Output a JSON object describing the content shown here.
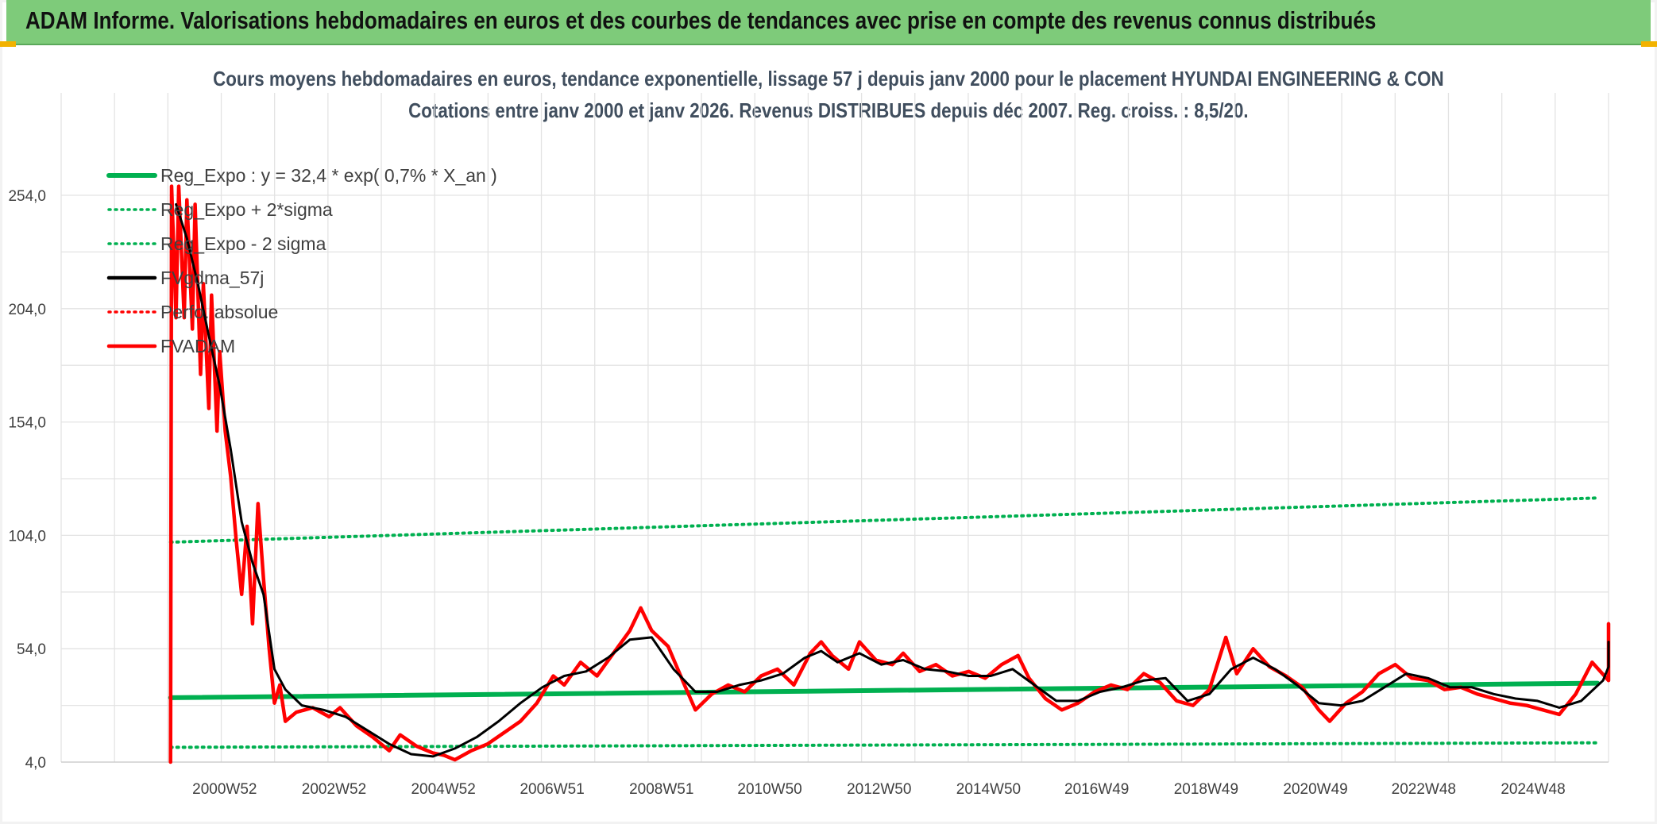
{
  "header": {
    "title": "ADAM Informe. Valorisations hebdomadaires en euros et des courbes de tendances avec prise en compte des revenus connus distribués"
  },
  "chart_data": {
    "type": "line",
    "title": "Cours moyens hebdomadaires en euros, tendance exponentielle, lissage 57 j depuis janv 2000 pour le placement HYUNDAI ENGINEERING & CON",
    "subtitle": "Cotations entre janv 2000 et janv 2026. Revenus DISTRIBUES depuis déc 2007. Reg. croiss. : 8,5/20.",
    "xlabel": "",
    "ylabel": "",
    "ylim": [
      4,
      254
    ],
    "yticks": [
      "254,0",
      "204,0",
      "154,0",
      "104,0",
      "54,0",
      "4,0"
    ],
    "ytick_values": [
      254,
      204,
      154,
      104,
      54,
      4
    ],
    "xlim": [
      1998.0,
      2026.3
    ],
    "xticks": [
      "2000W52",
      "2002W52",
      "2004W52",
      "2006W51",
      "2008W51",
      "2010W50",
      "2012W50",
      "2014W50",
      "2016W49",
      "2018W49",
      "2020W49",
      "2022W48",
      "2024W48"
    ],
    "xtick_values": [
      2000.99,
      2002.99,
      2004.99,
      2006.98,
      2008.98,
      2010.96,
      2012.96,
      2014.96,
      2016.94,
      2018.94,
      2020.94,
      2022.92,
      2024.92
    ],
    "grid": true,
    "legend_position": "top-left",
    "series": [
      {
        "name": "Reg_Expo : y = 32,4 * exp( 0,7% *  X_an )",
        "color": "#00b050",
        "style": "solid",
        "points": [
          [
            2000.0,
            32.4
          ],
          [
            2026.1,
            38.8
          ]
        ]
      },
      {
        "name": "Reg_Expo + 2*sigma",
        "color": "#00b050",
        "style": "dotted",
        "points": [
          [
            2000.0,
            101.0
          ],
          [
            2026.1,
            120.5
          ]
        ]
      },
      {
        "name": "Reg_Expo - 2 sigma",
        "color": "#00b050",
        "style": "dotted",
        "points": [
          [
            2000.0,
            10.5
          ],
          [
            2026.1,
            12.5
          ]
        ]
      },
      {
        "name": "FVgdma_57j",
        "color": "#000000",
        "style": "solid",
        "points": [
          [
            2000.1,
            250
          ],
          [
            2000.3,
            235
          ],
          [
            2000.5,
            215
          ],
          [
            2000.7,
            192
          ],
          [
            2000.9,
            170
          ],
          [
            2001.1,
            142
          ],
          [
            2001.3,
            110
          ],
          [
            2001.5,
            92
          ],
          [
            2001.7,
            78
          ],
          [
            2001.9,
            45
          ],
          [
            2002.1,
            36
          ],
          [
            2002.4,
            29
          ],
          [
            2002.8,
            27
          ],
          [
            2003.2,
            24
          ],
          [
            2003.6,
            18
          ],
          [
            2004.0,
            12
          ],
          [
            2004.4,
            7.5
          ],
          [
            2004.8,
            6.5
          ],
          [
            2005.2,
            10
          ],
          [
            2005.6,
            15
          ],
          [
            2006.0,
            22
          ],
          [
            2006.4,
            30
          ],
          [
            2006.8,
            37
          ],
          [
            2007.2,
            42
          ],
          [
            2007.6,
            44
          ],
          [
            2008.0,
            50
          ],
          [
            2008.4,
            58
          ],
          [
            2008.8,
            59
          ],
          [
            2009.2,
            45
          ],
          [
            2009.6,
            35
          ],
          [
            2010.0,
            35
          ],
          [
            2010.4,
            38
          ],
          [
            2010.8,
            40
          ],
          [
            2011.2,
            43
          ],
          [
            2011.6,
            50
          ],
          [
            2011.9,
            53
          ],
          [
            2012.2,
            48
          ],
          [
            2012.6,
            52
          ],
          [
            2013.0,
            47
          ],
          [
            2013.4,
            49
          ],
          [
            2013.8,
            45
          ],
          [
            2014.2,
            44
          ],
          [
            2014.6,
            42
          ],
          [
            2015.0,
            42
          ],
          [
            2015.4,
            45
          ],
          [
            2015.8,
            38
          ],
          [
            2016.2,
            31
          ],
          [
            2016.6,
            31
          ],
          [
            2017.0,
            35
          ],
          [
            2017.4,
            37
          ],
          [
            2017.8,
            40
          ],
          [
            2018.2,
            41
          ],
          [
            2018.6,
            31
          ],
          [
            2019.0,
            34
          ],
          [
            2019.4,
            45
          ],
          [
            2019.8,
            50
          ],
          [
            2020.2,
            45
          ],
          [
            2020.6,
            38
          ],
          [
            2021.0,
            30
          ],
          [
            2021.4,
            29
          ],
          [
            2021.8,
            31
          ],
          [
            2022.2,
            37
          ],
          [
            2022.6,
            43
          ],
          [
            2023.0,
            41
          ],
          [
            2023.4,
            37
          ],
          [
            2023.8,
            37
          ],
          [
            2024.2,
            34
          ],
          [
            2024.6,
            32
          ],
          [
            2025.0,
            31
          ],
          [
            2025.4,
            28
          ],
          [
            2025.8,
            31
          ],
          [
            2026.2,
            40
          ],
          [
            2026.6,
            46
          ],
          [
            2026.9,
            48
          ],
          [
            2027.3,
            52
          ],
          [
            2027.6,
            57
          ]
        ]
      },
      {
        "name": "Perfo. absolue",
        "color": "#ff0000",
        "style": "dotted",
        "points": []
      },
      {
        "name": "FVADAM",
        "color": "#ff0000",
        "style": "solid",
        "points": [
          [
            2000.0,
            4
          ],
          [
            2000.02,
            258
          ],
          [
            2000.1,
            200
          ],
          [
            2000.15,
            258
          ],
          [
            2000.25,
            200
          ],
          [
            2000.3,
            252
          ],
          [
            2000.4,
            195
          ],
          [
            2000.45,
            250
          ],
          [
            2000.55,
            175
          ],
          [
            2000.6,
            215
          ],
          [
            2000.7,
            160
          ],
          [
            2000.75,
            210
          ],
          [
            2000.85,
            150
          ],
          [
            2000.9,
            185
          ],
          [
            2001.0,
            150
          ],
          [
            2001.1,
            130
          ],
          [
            2001.2,
            102
          ],
          [
            2001.3,
            78
          ],
          [
            2001.4,
            108
          ],
          [
            2001.5,
            65
          ],
          [
            2001.6,
            118
          ],
          [
            2001.7,
            85
          ],
          [
            2001.8,
            55
          ],
          [
            2001.9,
            30
          ],
          [
            2002.0,
            38
          ],
          [
            2002.1,
            22
          ],
          [
            2002.3,
            26
          ],
          [
            2002.6,
            28
          ],
          [
            2002.9,
            24
          ],
          [
            2003.1,
            28
          ],
          [
            2003.4,
            20
          ],
          [
            2003.7,
            15
          ],
          [
            2004.0,
            9
          ],
          [
            2004.2,
            16
          ],
          [
            2004.5,
            11
          ],
          [
            2004.8,
            8
          ],
          [
            2005.0,
            7
          ],
          [
            2005.2,
            5
          ],
          [
            2005.5,
            9
          ],
          [
            2005.8,
            12
          ],
          [
            2006.1,
            17
          ],
          [
            2006.4,
            22
          ],
          [
            2006.7,
            30
          ],
          [
            2007.0,
            42
          ],
          [
            2007.2,
            38
          ],
          [
            2007.5,
            48
          ],
          [
            2007.8,
            42
          ],
          [
            2008.1,
            52
          ],
          [
            2008.4,
            62
          ],
          [
            2008.6,
            72
          ],
          [
            2008.8,
            62
          ],
          [
            2009.1,
            55
          ],
          [
            2009.4,
            38
          ],
          [
            2009.6,
            27
          ],
          [
            2009.9,
            34
          ],
          [
            2010.2,
            38
          ],
          [
            2010.5,
            35
          ],
          [
            2010.8,
            42
          ],
          [
            2011.1,
            45
          ],
          [
            2011.4,
            38
          ],
          [
            2011.7,
            52
          ],
          [
            2011.9,
            57
          ],
          [
            2012.1,
            51
          ],
          [
            2012.4,
            45
          ],
          [
            2012.6,
            57
          ],
          [
            2012.9,
            49
          ],
          [
            2013.2,
            47
          ],
          [
            2013.4,
            52
          ],
          [
            2013.7,
            44
          ],
          [
            2014.0,
            47
          ],
          [
            2014.3,
            42
          ],
          [
            2014.6,
            44
          ],
          [
            2014.9,
            41
          ],
          [
            2015.2,
            47
          ],
          [
            2015.5,
            51
          ],
          [
            2015.7,
            41
          ],
          [
            2016.0,
            32
          ],
          [
            2016.3,
            27
          ],
          [
            2016.6,
            30
          ],
          [
            2016.9,
            35
          ],
          [
            2017.2,
            38
          ],
          [
            2017.5,
            36
          ],
          [
            2017.8,
            43
          ],
          [
            2018.1,
            39
          ],
          [
            2018.4,
            31
          ],
          [
            2018.7,
            29
          ],
          [
            2019.0,
            36
          ],
          [
            2019.3,
            59
          ],
          [
            2019.5,
            43
          ],
          [
            2019.8,
            54
          ],
          [
            2020.1,
            46
          ],
          [
            2020.4,
            42
          ],
          [
            2020.7,
            37
          ],
          [
            2021.0,
            27
          ],
          [
            2021.2,
            22
          ],
          [
            2021.5,
            30
          ],
          [
            2021.8,
            35
          ],
          [
            2022.1,
            43
          ],
          [
            2022.4,
            47
          ],
          [
            2022.7,
            41
          ],
          [
            2023.0,
            40
          ],
          [
            2023.3,
            36
          ],
          [
            2023.6,
            37
          ],
          [
            2023.9,
            34
          ],
          [
            2024.2,
            32
          ],
          [
            2024.5,
            30
          ],
          [
            2024.8,
            29
          ],
          [
            2025.1,
            27
          ],
          [
            2025.4,
            25
          ],
          [
            2025.7,
            34
          ],
          [
            2026.0,
            48
          ],
          [
            2026.3,
            40
          ],
          [
            2026.6,
            46
          ],
          [
            2026.9,
            45
          ],
          [
            2027.2,
            57
          ],
          [
            2027.5,
            55
          ],
          [
            2027.7,
            65
          ]
        ]
      }
    ]
  }
}
